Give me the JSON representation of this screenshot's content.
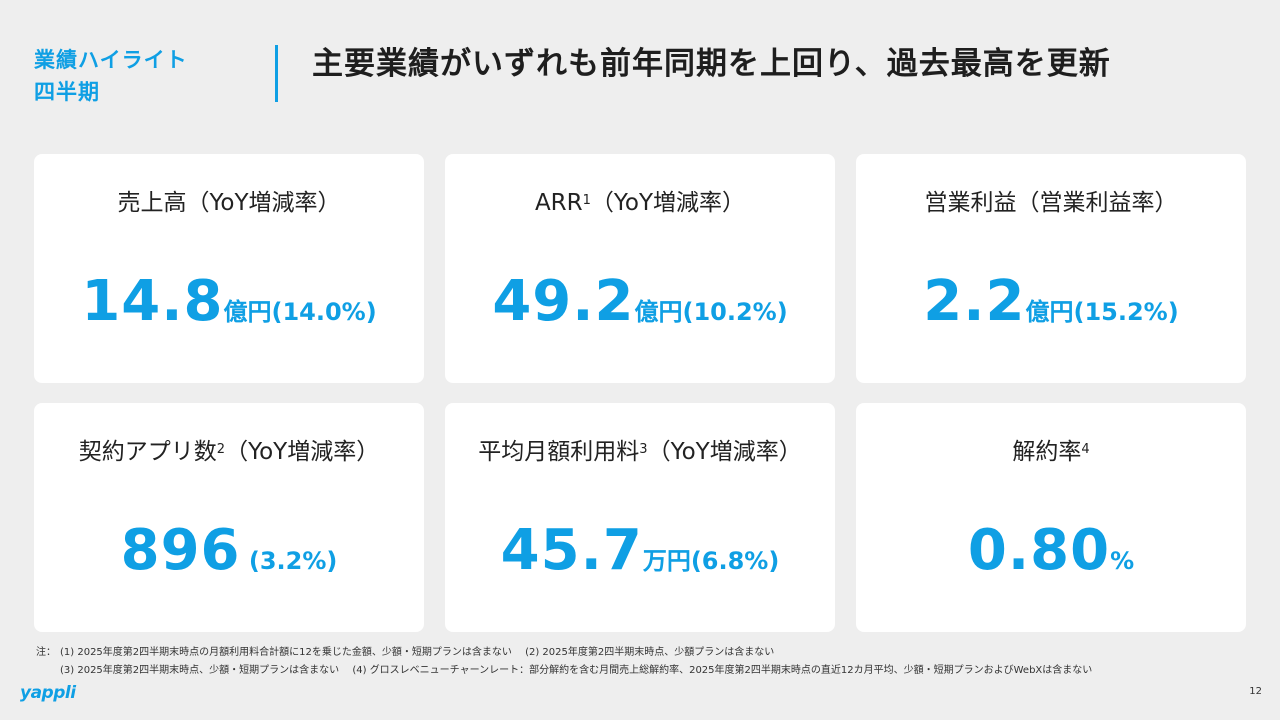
{
  "header": {
    "tag_line1": "業績ハイライト",
    "tag_line2": "四半期",
    "headline": "主要業績がいずれも前年同期を上回り、過去最高を更新"
  },
  "cards": [
    {
      "label": "売上高（YoY増減率）",
      "sup": "",
      "label_suffix": "",
      "number": "14.8",
      "unit": "億円(14.0%)"
    },
    {
      "label": "ARR",
      "sup": "1",
      "label_suffix": "（YoY増減率）",
      "number": "49.2",
      "unit": "億円(10.2%)"
    },
    {
      "label": "営業利益（営業利益率）",
      "sup": "",
      "label_suffix": "",
      "number": "2.2",
      "unit": "億円(15.2%)"
    },
    {
      "label": "契約アプリ数",
      "sup": "2",
      "label_suffix": "（YoY増減率）",
      "number": "896",
      "unit": " (3.2%)"
    },
    {
      "label": "平均月額利用料",
      "sup": "3",
      "label_suffix": "（YoY増減率）",
      "number": "45.7",
      "unit": "万円(6.8%)"
    },
    {
      "label": "解約率",
      "sup": "4",
      "label_suffix": "",
      "number": "0.80",
      "unit": "%"
    }
  ],
  "footnotes": {
    "prefix": "注：",
    "line1_a": "(1) 2025年度第2四半期末時点の月額利用料合計額に12を乗じた金額、少額・短期プランは含まない",
    "line1_b": "(2) 2025年度第2四半期末時点、少額プランは含まない",
    "line2_a": "(3) 2025年度第2四半期末時点、少額・短期プランは含まない",
    "line2_b": "(4) グロスレベニューチャーンレート：部分解約を含む月間売上総解約率、2025年度第2四半期末時点の直近12カ月平均、少額・短期プランおよびWebXは含まない"
  },
  "brand": {
    "logo_text": "yappli",
    "accent_color": "#0f9fe4"
  },
  "page_number": "12"
}
